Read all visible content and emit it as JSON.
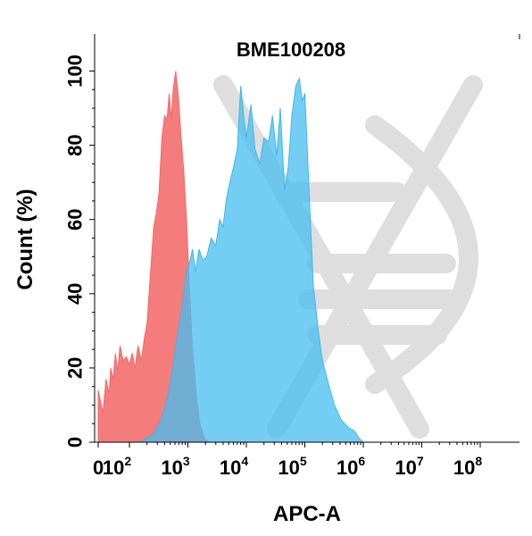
{
  "chart_data": {
    "type": "area",
    "title": "BME100208",
    "xlabel": "APC-A",
    "ylabel": "Count  (%)",
    "xscale": "log",
    "xlim": [
      0,
      100000000
    ],
    "ylim": [
      0,
      110
    ],
    "grid": false,
    "legend": "none",
    "x_ticks": [
      {
        "base": "0",
        "exp": ""
      },
      {
        "base": "10",
        "exp": "2"
      },
      {
        "base": "10",
        "exp": "3"
      },
      {
        "base": "10",
        "exp": "4"
      },
      {
        "base": "10",
        "exp": "5"
      },
      {
        "base": "10",
        "exp": "6"
      },
      {
        "base": "10",
        "exp": "7"
      },
      {
        "base": "10",
        "exp": "8"
      }
    ],
    "y_ticks": [
      "0",
      "20",
      "40",
      "60",
      "80",
      "100"
    ],
    "series": [
      {
        "color": "#f26b6b",
        "fill": "rgba(242,95,95,0.82)",
        "points": [
          [
            0,
            14
          ],
          [
            15,
            8
          ],
          [
            25,
            17
          ],
          [
            35,
            13
          ],
          [
            40,
            20
          ],
          [
            48,
            17
          ],
          [
            55,
            24
          ],
          [
            62,
            19
          ],
          [
            70,
            26
          ],
          [
            80,
            22
          ],
          [
            90,
            23
          ],
          [
            100,
            21
          ],
          [
            112,
            24
          ],
          [
            125,
            20
          ],
          [
            140,
            26
          ],
          [
            160,
            22
          ],
          [
            180,
            28
          ],
          [
            200,
            32
          ],
          [
            230,
            46
          ],
          [
            260,
            58
          ],
          [
            290,
            62
          ],
          [
            320,
            67
          ],
          [
            360,
            82
          ],
          [
            400,
            88
          ],
          [
            440,
            87
          ],
          [
            480,
            94
          ],
          [
            520,
            87
          ],
          [
            560,
            95
          ],
          [
            620,
            100
          ],
          [
            690,
            93
          ],
          [
            760,
            83
          ],
          [
            850,
            73
          ],
          [
            950,
            60
          ],
          [
            1050,
            43
          ],
          [
            1200,
            25
          ],
          [
            1400,
            12
          ],
          [
            1600,
            5
          ],
          [
            1900,
            1
          ],
          [
            2300,
            0
          ]
        ]
      },
      {
        "color": "#3fb6e6",
        "fill": "rgba(70,190,240,0.75)",
        "points": [
          [
            0,
            0
          ],
          [
            150,
            0
          ],
          [
            250,
            2
          ],
          [
            350,
            6
          ],
          [
            450,
            12
          ],
          [
            550,
            20
          ],
          [
            650,
            28
          ],
          [
            750,
            34
          ],
          [
            850,
            40
          ],
          [
            950,
            46
          ],
          [
            1050,
            48
          ],
          [
            1200,
            52
          ],
          [
            1350,
            46
          ],
          [
            1550,
            52
          ],
          [
            1800,
            49
          ],
          [
            2100,
            50
          ],
          [
            2500,
            55
          ],
          [
            3000,
            53
          ],
          [
            3500,
            60
          ],
          [
            4000,
            58
          ],
          [
            4500,
            65
          ],
          [
            5200,
            70
          ],
          [
            6000,
            74
          ],
          [
            7000,
            79
          ],
          [
            8000,
            96
          ],
          [
            9000,
            88
          ],
          [
            10000,
            82
          ],
          [
            12000,
            91
          ],
          [
            14000,
            79
          ],
          [
            17000,
            75
          ],
          [
            20000,
            82
          ],
          [
            24000,
            81
          ],
          [
            28000,
            88
          ],
          [
            33000,
            77
          ],
          [
            38000,
            90
          ],
          [
            45000,
            68
          ],
          [
            52000,
            74
          ],
          [
            60000,
            88
          ],
          [
            70000,
            96
          ],
          [
            80000,
            98
          ],
          [
            90000,
            92
          ],
          [
            100000,
            94
          ],
          [
            110000,
            79
          ],
          [
            120000,
            65
          ],
          [
            140000,
            42
          ],
          [
            170000,
            30
          ],
          [
            200000,
            22
          ],
          [
            250000,
            16
          ],
          [
            320000,
            10
          ],
          [
            420000,
            6
          ],
          [
            550000,
            4
          ],
          [
            700000,
            3
          ],
          [
            850000,
            1
          ],
          [
            1000000,
            0
          ]
        ]
      }
    ]
  }
}
